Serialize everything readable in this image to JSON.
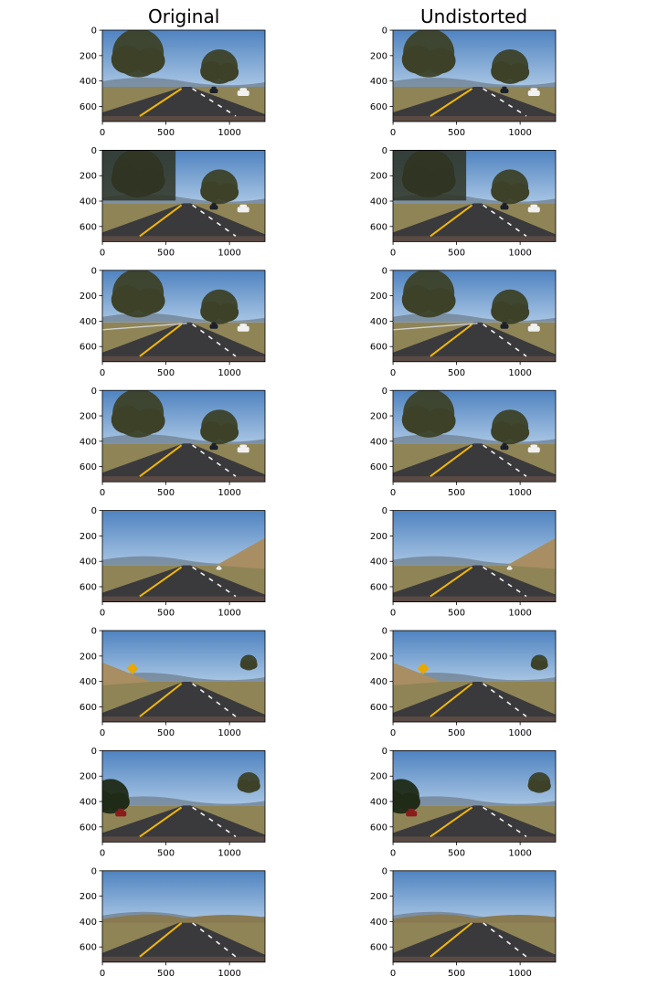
{
  "column_titles": [
    "Original",
    "Undistorted"
  ],
  "chart_data": {
    "type": "image-grid",
    "rows": 8,
    "columns": [
      "Original",
      "Undistorted"
    ],
    "image_width": 1280,
    "image_height": 720,
    "xticks": [
      0,
      500,
      1000
    ],
    "yticks": [
      0,
      200,
      400,
      600
    ],
    "panels": [
      {
        "row": 1,
        "scene": "road-trees-two-cars"
      },
      {
        "row": 2,
        "scene": "shadowed-road-trees-cars"
      },
      {
        "row": 3,
        "scene": "road-trees-guardrail-cars"
      },
      {
        "row": 4,
        "scene": "bright-road-trees-cars"
      },
      {
        "row": 5,
        "scene": "open-road-hill"
      },
      {
        "row": 6,
        "scene": "road-curve-sign"
      },
      {
        "row": 7,
        "scene": "road-red-car-left"
      },
      {
        "row": 8,
        "scene": "road-hills-distant"
      }
    ]
  },
  "colors": {
    "sky": "#6f9fd1",
    "sky_top": "#4f83c0",
    "road": "#3a3a3d",
    "yellow_line": "#f2b705",
    "white_line": "#f4f4f4",
    "tree": "#3c4128",
    "hill": "#a88e62",
    "grass": "#8f8456"
  }
}
